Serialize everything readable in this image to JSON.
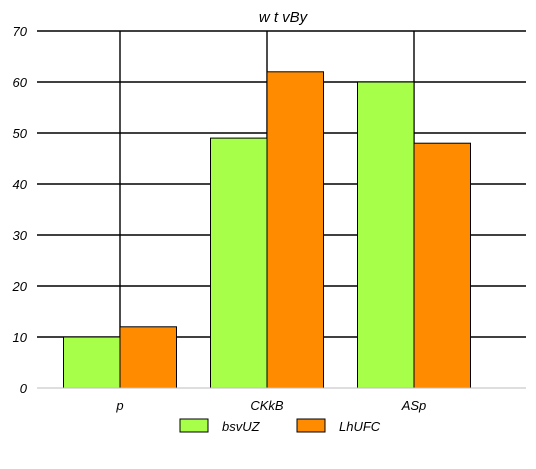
{
  "chart_data": {
    "type": "bar",
    "title": "w t vBy",
    "xlabel": "",
    "ylabel": "",
    "categories": [
      "p",
      "CKkB",
      "ASp"
    ],
    "series": [
      {
        "name": "bsvUZ",
        "values": [
          10,
          49,
          60
        ],
        "color": "#a8ff4a"
      },
      {
        "name": "LhUFC",
        "values": [
          12,
          62,
          48
        ],
        "color": "#ff8c00"
      }
    ],
    "ylim": [
      0,
      70
    ],
    "yticks": [
      "0",
      "10",
      "20",
      "30",
      "40",
      "50",
      "60",
      "70"
    ],
    "grid": true,
    "legend_position": "bottom"
  }
}
